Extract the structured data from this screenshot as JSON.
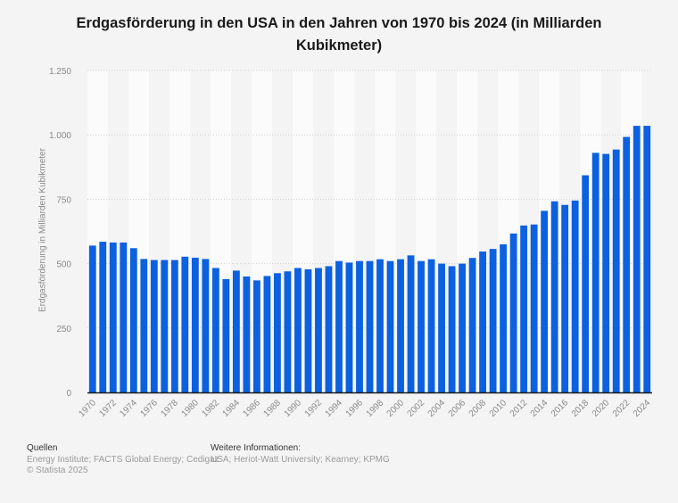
{
  "title": "Erdgasförderung in den USA in den Jahren von 1970 bis 2024 (in Milliarden Kubikmeter)",
  "colors": {
    "bar": "#0b61e0",
    "background": "#f4f4f4",
    "band": "#fbfbfb",
    "grid": "#cfcfcf",
    "axis": "#1a1a1a",
    "tick_text": "#8a8a8a"
  },
  "chart_data": {
    "type": "bar",
    "title": "Erdgasförderung in den USA in den Jahren von 1970 bis 2024 (in Milliarden Kubikmeter)",
    "xlabel": "",
    "ylabel": "Erdgasförderung in Milliarden Kubikmeter",
    "ylim": [
      0,
      1250
    ],
    "yticks": [
      0,
      250,
      500,
      750,
      1000,
      1250
    ],
    "ytick_labels": [
      "0",
      "250",
      "500",
      "750",
      "1.000",
      "1.250"
    ],
    "grid": true,
    "legend": "none",
    "categories": [
      "1970",
      "1971",
      "1972",
      "1973",
      "1974",
      "1975",
      "1976",
      "1977",
      "1978",
      "1979",
      "1980",
      "1981",
      "1982",
      "1983",
      "1984",
      "1985",
      "1986",
      "1987",
      "1988",
      "1989",
      "1990",
      "1991",
      "1992",
      "1993",
      "1994",
      "1995",
      "1996",
      "1997",
      "1998",
      "1999",
      "2000",
      "2001",
      "2002",
      "2003",
      "2004",
      "2005",
      "2006",
      "2007",
      "2008",
      "2009",
      "2010",
      "2011",
      "2012",
      "2013",
      "2014",
      "2015",
      "2016",
      "2017",
      "2018",
      "2019",
      "2020",
      "2021",
      "2022",
      "2023",
      "2024"
    ],
    "xtick_labels": [
      "1970",
      "1972",
      "1974",
      "1976",
      "1978",
      "1980",
      "1982",
      "1984",
      "1986",
      "1988",
      "1990",
      "1992",
      "1994",
      "1996",
      "1998",
      "2000",
      "2002",
      "2004",
      "2006",
      "2008",
      "2010",
      "2012",
      "2014",
      "2016",
      "2018",
      "2020",
      "2022",
      "2024"
    ],
    "values": [
      570,
      585,
      582,
      582,
      560,
      518,
      514,
      514,
      514,
      527,
      523,
      518,
      483,
      440,
      473,
      450,
      435,
      452,
      463,
      470,
      483,
      478,
      483,
      490,
      510,
      504,
      510,
      510,
      517,
      510,
      517,
      532,
      510,
      517,
      500,
      490,
      500,
      522,
      547,
      557,
      575,
      617,
      648,
      652,
      705,
      742,
      728,
      745,
      843,
      930,
      926,
      943,
      992,
      1035,
      1035
    ]
  },
  "footer": {
    "sources_heading": "Quellen",
    "sources_text": "Energy Institute; FACTS Global Energy; Cedigaz",
    "copyright": "© Statista 2025",
    "info_heading": "Weitere Informationen:",
    "info_text": "USA; Heriot-Watt University; Kearney; KPMG"
  }
}
